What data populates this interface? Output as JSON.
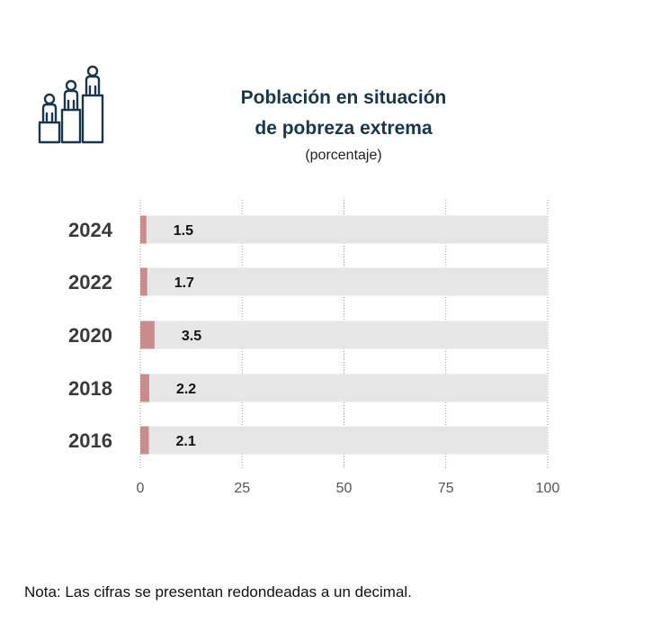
{
  "header": {
    "title_line1": "Población en situación",
    "title_line2": "de pobreza extrema",
    "subtitle": "(porcentaje)",
    "icon": "people-on-podium-icon"
  },
  "chart_data": {
    "type": "bar",
    "orientation": "horizontal",
    "title": "Población en situación de pobreza extrema",
    "subtitle": "(porcentaje)",
    "categories": [
      "2024",
      "2022",
      "2020",
      "2018",
      "2016"
    ],
    "values": [
      1.5,
      1.7,
      3.5,
      2.2,
      2.1
    ],
    "value_labels": [
      "1.5",
      "1.7",
      "3.5",
      "2.2",
      "2.1"
    ],
    "xlim": [
      0,
      100
    ],
    "x_ticks": [
      0,
      25,
      50,
      75,
      100
    ],
    "grid": true,
    "colors": {
      "bar": "#c98b8b",
      "track": "#e6e6e6",
      "grid": "#999999",
      "category_text": "#3a3a3a",
      "tick_text": "#555555"
    }
  },
  "note": "Nota:  Las cifras se presentan redondeadas a un decimal."
}
